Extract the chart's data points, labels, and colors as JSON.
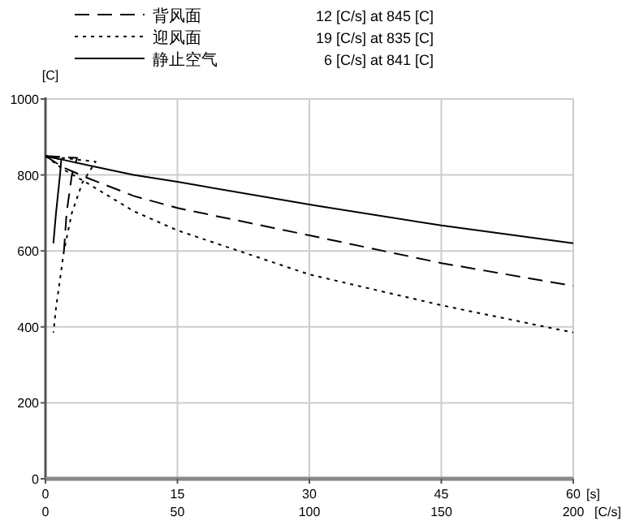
{
  "chart_data": {
    "type": "line",
    "ylabel": "[C]",
    "xlabel": "[s]",
    "x2label": "[C/s]",
    "xlim": [
      0,
      60
    ],
    "xticks": [
      0,
      15,
      30,
      45,
      60
    ],
    "x2lim": [
      0,
      200
    ],
    "x2ticks": [
      0,
      50,
      100,
      150,
      200
    ],
    "ylim": [
      0,
      1000
    ],
    "yticks": [
      0,
      200,
      400,
      600,
      800,
      1000
    ],
    "grid": true,
    "legend": "top",
    "series": [
      {
        "name": "背风面",
        "color": "#000000",
        "line_style": "dashed",
        "x": [
          0,
          2,
          5,
          10,
          15,
          30,
          45,
          60
        ],
        "values": [
          850,
          820,
          790,
          745,
          713,
          641,
          568,
          508
        ]
      },
      {
        "name": "迎风面",
        "color": "#000000",
        "line_style": "dotted",
        "x": [
          0,
          2,
          5,
          10,
          15,
          30,
          45,
          60
        ],
        "values": [
          850,
          815,
          775,
          705,
          654,
          538,
          457,
          385
        ]
      },
      {
        "name": "静止空气",
        "color": "#000000",
        "line_style": "solid",
        "x": [
          0,
          2,
          5,
          10,
          15,
          30,
          45,
          60
        ],
        "values": [
          850,
          840,
          825,
          800,
          782,
          722,
          667,
          620
        ]
      },
      {
        "axis": "x2",
        "color": "#000000",
        "line_style": "dashed",
        "x": [
          0,
          12,
          10,
          8,
          7
        ],
        "values": [
          850,
          845,
          800,
          700,
          600
        ]
      },
      {
        "axis": "x2",
        "color": "#000000",
        "line_style": "dotted",
        "x": [
          0,
          19,
          14,
          10,
          7,
          4,
          3
        ],
        "values": [
          850,
          835,
          780,
          700,
          600,
          450,
          385
        ]
      },
      {
        "axis": "x2",
        "color": "#000000",
        "line_style": "solid",
        "x": [
          0,
          6,
          5.5,
          4,
          3
        ],
        "values": [
          850,
          841,
          800,
          700,
          620
        ]
      }
    ],
    "annotations": [
      "12 [C/s] at  845 [C]",
      "19 [C/s] at  835 [C]",
      "6 [C/s] at  841 [C]"
    ]
  }
}
